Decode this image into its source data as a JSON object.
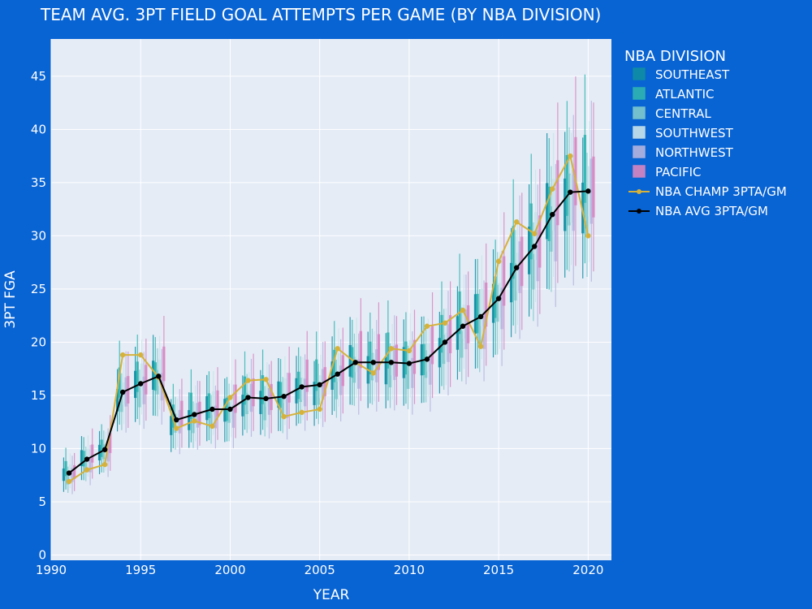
{
  "colors": {
    "background": "#0863d3",
    "plot_bg": "#e5ecf6",
    "grid": "#ffffff",
    "champ_line": "#d6b23a",
    "avg_line": "#000000"
  },
  "chart_data": {
    "type": "box",
    "title": "TEAM AVG. 3PT FIELD GOAL ATTEMPTS PER GAME (BY NBA DIVISION)",
    "xlabel": "YEAR",
    "ylabel": "3PT FGA",
    "xlim": [
      1990,
      2021.3
    ],
    "ylim": [
      -0.5,
      48.5
    ],
    "x_ticks": [
      1990,
      1995,
      2000,
      2005,
      2010,
      2015,
      2020
    ],
    "y_ticks": [
      0,
      5,
      10,
      15,
      20,
      25,
      30,
      35,
      40,
      45
    ],
    "grid": "on",
    "legend": {
      "title": "NBA DIVISION",
      "position": "right",
      "entries": [
        {
          "name": "SOUTHEAST",
          "color": "#0f8ea3",
          "kind": "box"
        },
        {
          "name": "ATLANTIC",
          "color": "#2fb5b1",
          "kind": "box"
        },
        {
          "name": "CENTRAL",
          "color": "#7fc9cd",
          "kind": "box"
        },
        {
          "name": "SOUTHWEST",
          "color": "#c9e4ea",
          "kind": "box"
        },
        {
          "name": "NORTHWEST",
          "color": "#b5b5df",
          "kind": "box"
        },
        {
          "name": "PACIFIC",
          "color": "#d986c2",
          "kind": "box"
        },
        {
          "name": "NBA CHAMP 3PTA/GM",
          "color": "#d6b23a",
          "kind": "line"
        },
        {
          "name": "NBA AVG 3PTA/GM",
          "color": "#000000",
          "kind": "line"
        }
      ]
    },
    "divisions": [
      {
        "name": "SOUTHEAST",
        "color": "#0f8ea3",
        "offset": -0.3
      },
      {
        "name": "ATLANTIC",
        "color": "#2fb5b1",
        "offset": -0.18
      },
      {
        "name": "CENTRAL",
        "color": "#7fc9cd",
        "offset": -0.06
      },
      {
        "name": "SOUTHWEST",
        "color": "#c9e4ea",
        "offset": 0.06
      },
      {
        "name": "NORTHWEST",
        "color": "#b5b5df",
        "offset": 0.18
      },
      {
        "name": "PACIFIC",
        "color": "#d986c2",
        "offset": 0.3
      }
    ],
    "years": [
      1991,
      1992,
      1993,
      1994,
      1995,
      1996,
      1997,
      1998,
      1999,
      2000,
      2001,
      2002,
      2003,
      2004,
      2005,
      2006,
      2007,
      2008,
      2009,
      2010,
      2011,
      2012,
      2013,
      2014,
      2015,
      2016,
      2017,
      2018,
      2019,
      2020
    ],
    "nba_avg": [
      7.7,
      9.0,
      9.9,
      15.3,
      16.1,
      16.8,
      12.7,
      13.2,
      13.7,
      13.7,
      14.8,
      14.7,
      14.9,
      15.8,
      16.0,
      17.0,
      18.1,
      18.1,
      18.1,
      18.0,
      18.4,
      20.0,
      21.5,
      22.4,
      24.1,
      27.0,
      29.0,
      32.0,
      34.1,
      34.2
    ],
    "nba_champ": [
      6.9,
      8.0,
      8.5,
      18.8,
      18.8,
      16.7,
      11.9,
      12.6,
      12.1,
      14.8,
      16.4,
      16.5,
      13.0,
      13.4,
      13.7,
      19.4,
      18.1,
      17.1,
      19.4,
      19.2,
      21.5,
      21.8,
      23.0,
      19.6,
      27.6,
      31.3,
      30.2,
      34.4,
      37.5,
      30.0
    ]
  }
}
